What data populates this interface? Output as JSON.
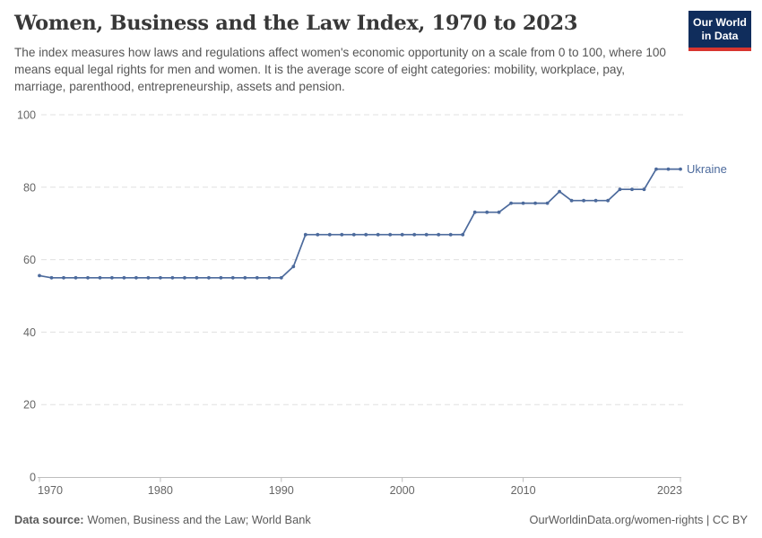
{
  "header": {
    "title": "Women, Business and the Law Index, 1970 to 2023",
    "subtitle": "The index measures how laws and regulations affect women's economic opportunity on a scale from 0 to 100, where 100 means equal legal rights for men and women. It is the average score of eight categories: mobility, workplace, pay, marriage, parenthood, entrepreneurship, assets and pension.",
    "logo": {
      "line1": "Our World",
      "line2": "in Data"
    }
  },
  "chart_data": {
    "type": "line",
    "title": "Women, Business and the Law Index, 1970 to 2023",
    "xlabel": "",
    "ylabel": "",
    "xlim": [
      1970,
      2023
    ],
    "ylim": [
      0,
      100
    ],
    "xticks": [
      1970,
      1980,
      1990,
      2000,
      2010,
      2023
    ],
    "yticks": [
      0,
      20,
      40,
      60,
      80,
      100
    ],
    "grid": "horizontal-dashed",
    "legend_position": "end-of-line",
    "series": [
      {
        "name": "Ukraine",
        "color": "#4C6A9C",
        "x": [
          1970,
          1971,
          1972,
          1973,
          1974,
          1975,
          1976,
          1977,
          1978,
          1979,
          1980,
          1981,
          1982,
          1983,
          1984,
          1985,
          1986,
          1987,
          1988,
          1989,
          1990,
          1991,
          1992,
          1993,
          1994,
          1995,
          1996,
          1997,
          1998,
          1999,
          2000,
          2001,
          2002,
          2003,
          2004,
          2005,
          2006,
          2007,
          2008,
          2009,
          2010,
          2011,
          2012,
          2013,
          2014,
          2015,
          2016,
          2017,
          2018,
          2019,
          2020,
          2021,
          2022,
          2023
        ],
        "values": [
          55.6,
          55,
          55,
          55,
          55,
          55,
          55,
          55,
          55,
          55,
          55,
          55,
          55,
          55,
          55,
          55,
          55,
          55,
          55,
          55,
          55,
          58.1,
          66.9,
          66.9,
          66.9,
          66.9,
          66.9,
          66.9,
          66.9,
          66.9,
          66.9,
          66.9,
          66.9,
          66.9,
          66.9,
          66.9,
          73.1,
          73.1,
          73.1,
          75.6,
          75.6,
          75.6,
          75.6,
          78.8,
          76.3,
          76.3,
          76.3,
          76.3,
          79.4,
          79.4,
          79.4,
          85,
          85,
          85
        ]
      }
    ]
  },
  "footer": {
    "source_label": "Data source:",
    "source_text": "Women, Business and the Law; World Bank",
    "right_text": "OurWorldinData.org/women-rights | CC BY"
  },
  "colors": {
    "line": "#4C6A9C",
    "grid": "#e0e0e0",
    "axis": "#bdbdbd",
    "tick_text": "#666666",
    "title_text": "#383838",
    "subtitle_text": "#555555",
    "footer_text": "#5a5a5a",
    "logo_bg": "#102d5c",
    "logo_stripe": "#d8352f"
  }
}
